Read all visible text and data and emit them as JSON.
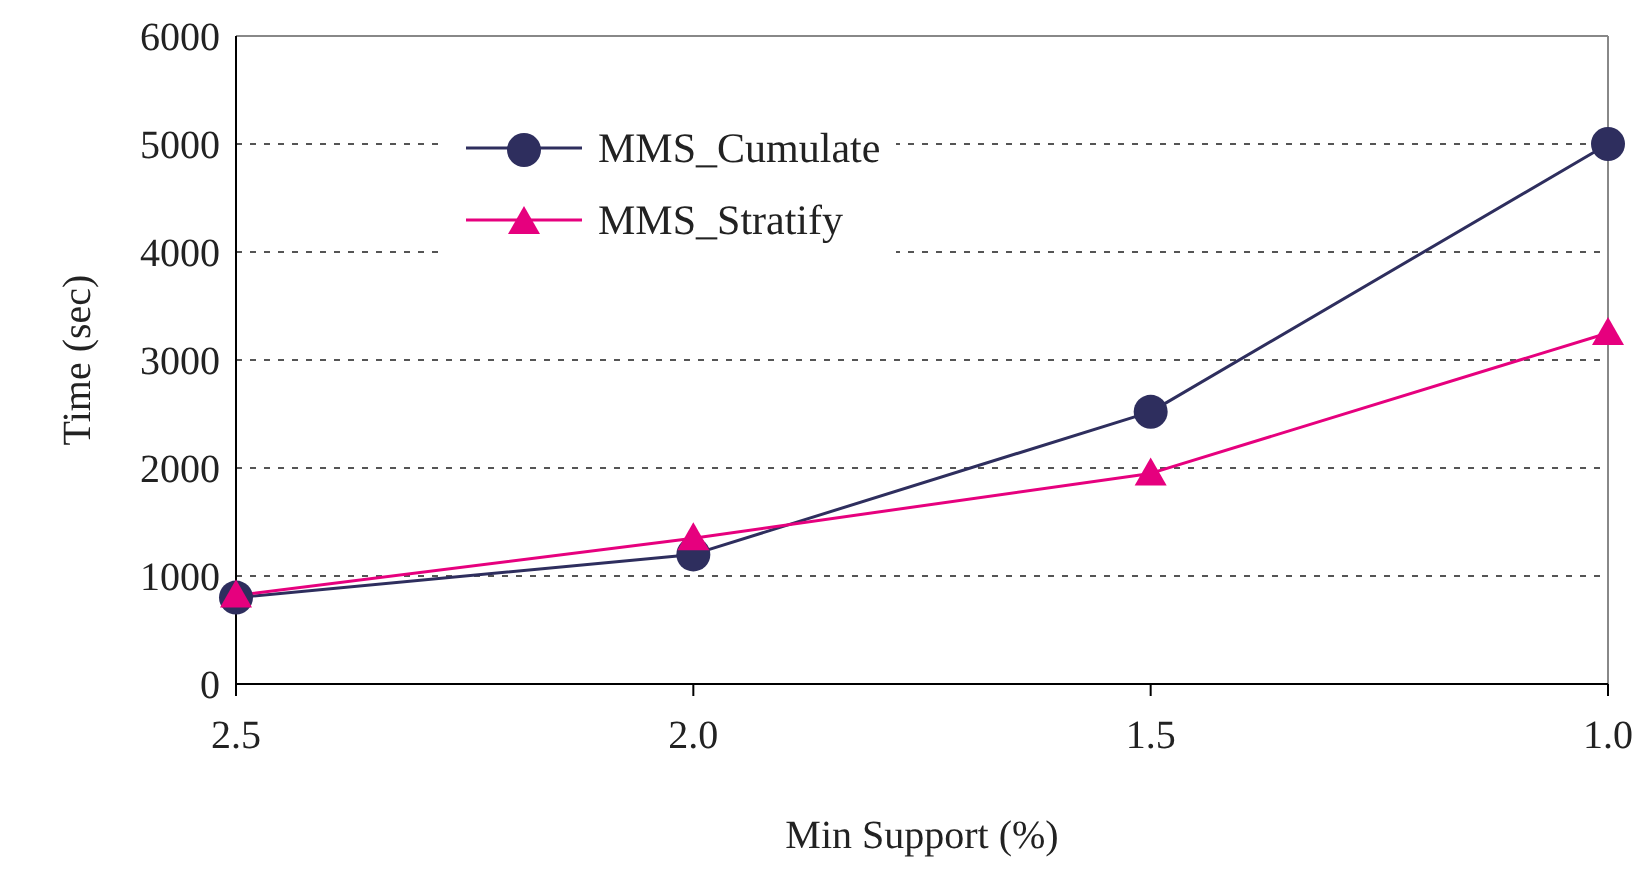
{
  "chart_data": {
    "type": "line",
    "xlabel": "Min Support (%)",
    "ylabel": "Time (sec)",
    "categories": [
      "2.5",
      "2.0",
      "1.5",
      "1.0"
    ],
    "series": [
      {
        "name": "MMS_Cumulate",
        "color": "#2e2e5e",
        "values": [
          800,
          1200,
          2520,
          5000
        ],
        "marker": "circle"
      },
      {
        "name": "MMS_Stratify",
        "color": "#e6007e",
        "values": [
          820,
          1350,
          1950,
          3250
        ],
        "marker": "triangle"
      }
    ],
    "ylim": [
      0,
      6000
    ],
    "yticks": [
      0,
      1000,
      2000,
      3000,
      4000,
      5000,
      6000
    ],
    "grid": "y",
    "legend": "top left",
    "line_style": "solid"
  }
}
